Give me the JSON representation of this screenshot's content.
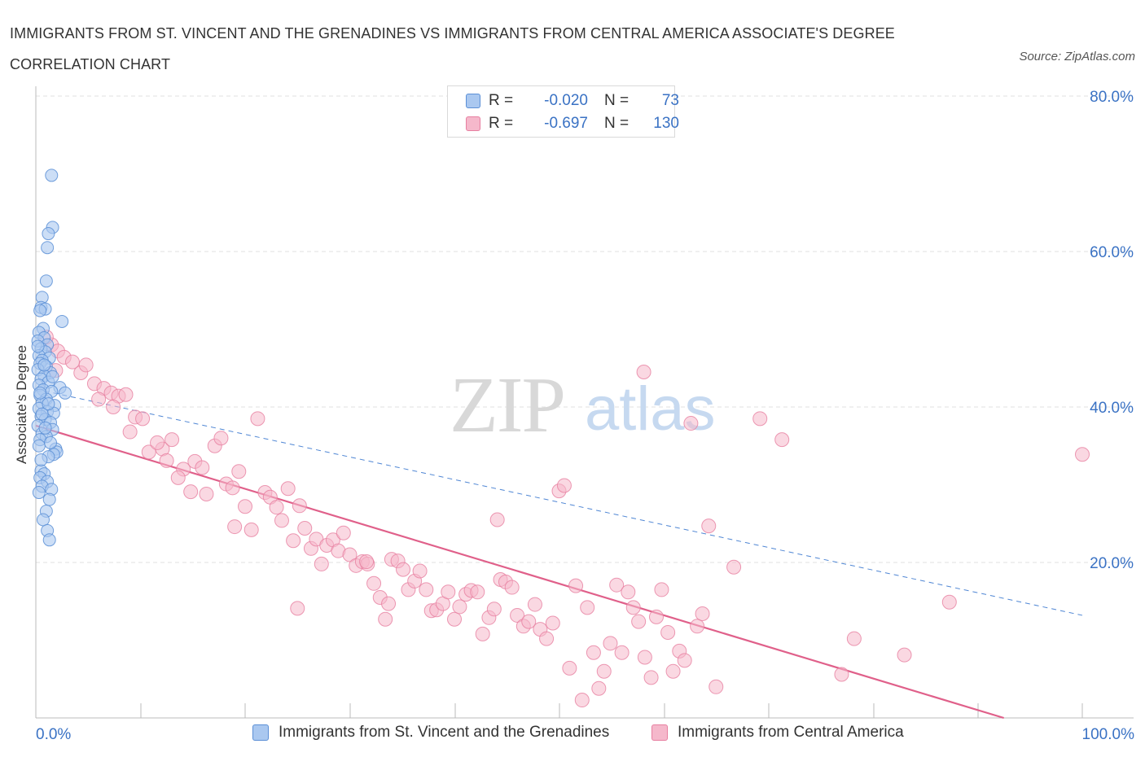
{
  "title": "IMMIGRANTS FROM ST. VINCENT AND THE GRENADINES VS IMMIGRANTS FROM CENTRAL AMERICA ASSOCIATE'S DEGREE CORRELATION CHART",
  "source": "Source: ZipAtlas.com",
  "watermark": {
    "zip": "ZIP",
    "atlas": "atlas"
  },
  "legend": {
    "r_label": "R =",
    "n_label": "N =",
    "series": [
      {
        "r": "-0.020",
        "n": "73"
      },
      {
        "r": "-0.697",
        "n": "130"
      }
    ]
  },
  "colors": {
    "blue_fill": "#aac8f0",
    "blue_stroke": "#5b8fd6",
    "blue_line": "#4f86d4",
    "pink_fill": "#f5b8cb",
    "pink_stroke": "#e77fa0",
    "pink_line": "#e0608a",
    "axis_text": "#3a72c4",
    "grid": "#e0e0e0"
  },
  "chart_data": {
    "type": "scatter",
    "title": "IMMIGRANTS FROM ST. VINCENT AND THE GRENADINES VS IMMIGRANTS FROM CENTRAL AMERICA ASSOCIATE'S DEGREE CORRELATION CHART",
    "xlabel": "",
    "ylabel": "Associate's Degree",
    "xlim": [
      0,
      100
    ],
    "ylim": [
      0,
      80
    ],
    "x_tick_labels": [
      "0.0%",
      "100.0%"
    ],
    "y_ticks": [
      20,
      40,
      60,
      80
    ],
    "y_tick_labels": [
      "20.0%",
      "40.0%",
      "60.0%",
      "80.0%"
    ],
    "grid": "horizontal dashed",
    "legend_position": "top-center",
    "series": [
      {
        "name": "Immigrants from St. Vincent and the Grenadines",
        "r": -0.02,
        "n": 73,
        "trend": {
          "x": [
            0,
            100
          ],
          "y": [
            42.3,
            13.2
          ],
          "style": "dashed"
        },
        "points": [
          [
            1.5,
            69.8
          ],
          [
            1.6,
            63.1
          ],
          [
            1.2,
            62.3
          ],
          [
            1.1,
            60.5
          ],
          [
            1.0,
            56.2
          ],
          [
            0.6,
            54.1
          ],
          [
            0.5,
            52.8
          ],
          [
            0.9,
            52.6
          ],
          [
            0.4,
            52.4
          ],
          [
            2.5,
            51.0
          ],
          [
            0.7,
            50.1
          ],
          [
            0.3,
            49.6
          ],
          [
            0.8,
            48.9
          ],
          [
            0.2,
            48.5
          ],
          [
            1.1,
            48.0
          ],
          [
            0.5,
            47.5
          ],
          [
            0.9,
            47.1
          ],
          [
            0.3,
            46.6
          ],
          [
            1.3,
            46.3
          ],
          [
            0.6,
            46.0
          ],
          [
            0.4,
            45.6
          ],
          [
            1.0,
            45.2
          ],
          [
            0.2,
            44.8
          ],
          [
            1.4,
            44.4
          ],
          [
            0.8,
            44.0
          ],
          [
            0.5,
            43.6
          ],
          [
            1.2,
            43.2
          ],
          [
            0.3,
            42.8
          ],
          [
            2.3,
            42.5
          ],
          [
            0.7,
            42.2
          ],
          [
            1.5,
            42.0
          ],
          [
            2.8,
            41.8
          ],
          [
            0.4,
            41.5
          ],
          [
            1.0,
            41.0
          ],
          [
            0.6,
            40.5
          ],
          [
            1.8,
            40.2
          ],
          [
            0.3,
            39.8
          ],
          [
            1.1,
            39.4
          ],
          [
            1.7,
            39.2
          ],
          [
            0.5,
            38.8
          ],
          [
            0.9,
            38.4
          ],
          [
            1.4,
            38.0
          ],
          [
            0.2,
            37.6
          ],
          [
            1.6,
            37.1
          ],
          [
            0.6,
            36.6
          ],
          [
            1.0,
            36.2
          ],
          [
            0.4,
            35.8
          ],
          [
            0.3,
            35.0
          ],
          [
            1.9,
            34.6
          ],
          [
            2.0,
            34.2
          ],
          [
            1.7,
            33.9
          ],
          [
            1.2,
            33.6
          ],
          [
            0.5,
            31.8
          ],
          [
            0.8,
            31.4
          ],
          [
            0.4,
            30.9
          ],
          [
            1.1,
            30.4
          ],
          [
            0.6,
            29.8
          ],
          [
            1.5,
            29.4
          ],
          [
            0.3,
            29.0
          ],
          [
            1.3,
            28.1
          ],
          [
            1.0,
            26.6
          ],
          [
            0.7,
            25.5
          ],
          [
            1.1,
            24.1
          ],
          [
            1.3,
            22.9
          ],
          [
            0.2,
            47.8
          ],
          [
            0.8,
            45.4
          ],
          [
            1.6,
            43.9
          ],
          [
            0.4,
            41.8
          ],
          [
            1.2,
            40.4
          ],
          [
            0.6,
            39.1
          ],
          [
            0.9,
            37.3
          ],
          [
            1.4,
            35.4
          ],
          [
            0.5,
            33.2
          ]
        ]
      },
      {
        "name": "Immigrants from Central America",
        "r": -0.697,
        "n": 130,
        "trend": {
          "x": [
            0,
            92.5
          ],
          "y": [
            37.6,
            0
          ],
          "style": "solid"
        },
        "points": [
          [
            1.5,
            48.0
          ],
          [
            2.1,
            47.2
          ],
          [
            2.7,
            46.4
          ],
          [
            1.0,
            49.0
          ],
          [
            1.9,
            44.7
          ],
          [
            3.5,
            45.8
          ],
          [
            4.3,
            44.4
          ],
          [
            4.8,
            45.4
          ],
          [
            5.6,
            43.0
          ],
          [
            6.5,
            42.4
          ],
          [
            7.2,
            41.8
          ],
          [
            7.9,
            41.4
          ],
          [
            8.6,
            41.6
          ],
          [
            6.0,
            41.0
          ],
          [
            7.4,
            40.0
          ],
          [
            9.5,
            38.7
          ],
          [
            10.2,
            38.5
          ],
          [
            9.0,
            36.8
          ],
          [
            10.8,
            34.2
          ],
          [
            12.1,
            34.6
          ],
          [
            11.6,
            35.4
          ],
          [
            13.0,
            35.8
          ],
          [
            12.5,
            33.1
          ],
          [
            14.1,
            32.0
          ],
          [
            15.2,
            33.0
          ],
          [
            15.9,
            32.2
          ],
          [
            13.6,
            30.9
          ],
          [
            14.8,
            29.1
          ],
          [
            16.3,
            28.8
          ],
          [
            17.1,
            35.0
          ],
          [
            17.7,
            36.0
          ],
          [
            18.2,
            30.1
          ],
          [
            18.8,
            29.6
          ],
          [
            19.4,
            31.7
          ],
          [
            20.0,
            27.2
          ],
          [
            20.6,
            24.2
          ],
          [
            21.2,
            38.5
          ],
          [
            21.9,
            29.0
          ],
          [
            22.4,
            28.4
          ],
          [
            23.0,
            27.1
          ],
          [
            23.5,
            25.4
          ],
          [
            24.1,
            29.5
          ],
          [
            24.6,
            22.8
          ],
          [
            25.2,
            27.3
          ],
          [
            25.7,
            24.4
          ],
          [
            26.3,
            21.8
          ],
          [
            26.8,
            23.0
          ],
          [
            27.3,
            19.8
          ],
          [
            27.8,
            22.2
          ],
          [
            28.4,
            22.9
          ],
          [
            28.9,
            21.5
          ],
          [
            29.4,
            23.8
          ],
          [
            30.0,
            21.0
          ],
          [
            30.6,
            19.6
          ],
          [
            31.2,
            20.1
          ],
          [
            31.7,
            19.8
          ],
          [
            32.3,
            17.3
          ],
          [
            32.9,
            15.5
          ],
          [
            33.4,
            12.7
          ],
          [
            34.0,
            20.4
          ],
          [
            34.6,
            20.2
          ],
          [
            35.1,
            19.1
          ],
          [
            35.6,
            16.5
          ],
          [
            36.2,
            17.6
          ],
          [
            36.7,
            18.9
          ],
          [
            37.3,
            16.5
          ],
          [
            37.8,
            13.8
          ],
          [
            38.3,
            13.9
          ],
          [
            38.9,
            14.7
          ],
          [
            39.4,
            16.2
          ],
          [
            40.0,
            12.7
          ],
          [
            40.5,
            14.3
          ],
          [
            41.1,
            15.9
          ],
          [
            41.6,
            16.4
          ],
          [
            42.2,
            16.2
          ],
          [
            42.7,
            10.8
          ],
          [
            43.3,
            12.9
          ],
          [
            43.8,
            14.0
          ],
          [
            44.4,
            17.8
          ],
          [
            44.9,
            17.5
          ],
          [
            45.5,
            16.8
          ],
          [
            46.0,
            13.2
          ],
          [
            46.6,
            11.8
          ],
          [
            47.1,
            12.4
          ],
          [
            47.7,
            14.6
          ],
          [
            48.2,
            11.4
          ],
          [
            48.8,
            10.2
          ],
          [
            49.4,
            12.2
          ],
          [
            50.0,
            29.2
          ],
          [
            50.5,
            29.9
          ],
          [
            51.0,
            6.4
          ],
          [
            51.6,
            17.0
          ],
          [
            52.2,
            2.3
          ],
          [
            52.7,
            14.2
          ],
          [
            53.3,
            8.4
          ],
          [
            53.8,
            3.8
          ],
          [
            54.3,
            6.0
          ],
          [
            54.9,
            9.6
          ],
          [
            55.5,
            17.1
          ],
          [
            56.0,
            8.4
          ],
          [
            56.6,
            16.2
          ],
          [
            57.1,
            14.2
          ],
          [
            57.6,
            12.4
          ],
          [
            58.2,
            7.8
          ],
          [
            58.8,
            5.2
          ],
          [
            59.3,
            13.0
          ],
          [
            59.8,
            16.5
          ],
          [
            60.4,
            11.0
          ],
          [
            60.9,
            6.0
          ],
          [
            61.5,
            8.6
          ],
          [
            62.0,
            7.4
          ],
          [
            58.1,
            44.5
          ],
          [
            62.6,
            37.9
          ],
          [
            63.2,
            11.8
          ],
          [
            63.7,
            13.4
          ],
          [
            64.3,
            24.7
          ],
          [
            65.0,
            4.0
          ],
          [
            66.7,
            19.4
          ],
          [
            69.2,
            38.5
          ],
          [
            71.3,
            35.8
          ],
          [
            77.0,
            5.6
          ],
          [
            78.2,
            10.2
          ],
          [
            83.0,
            8.1
          ],
          [
            87.3,
            14.9
          ],
          [
            100.0,
            33.9
          ],
          [
            44.1,
            25.5
          ],
          [
            33.7,
            14.7
          ],
          [
            25.0,
            14.1
          ],
          [
            19.0,
            24.6
          ],
          [
            31.6,
            20.1
          ]
        ]
      }
    ]
  }
}
